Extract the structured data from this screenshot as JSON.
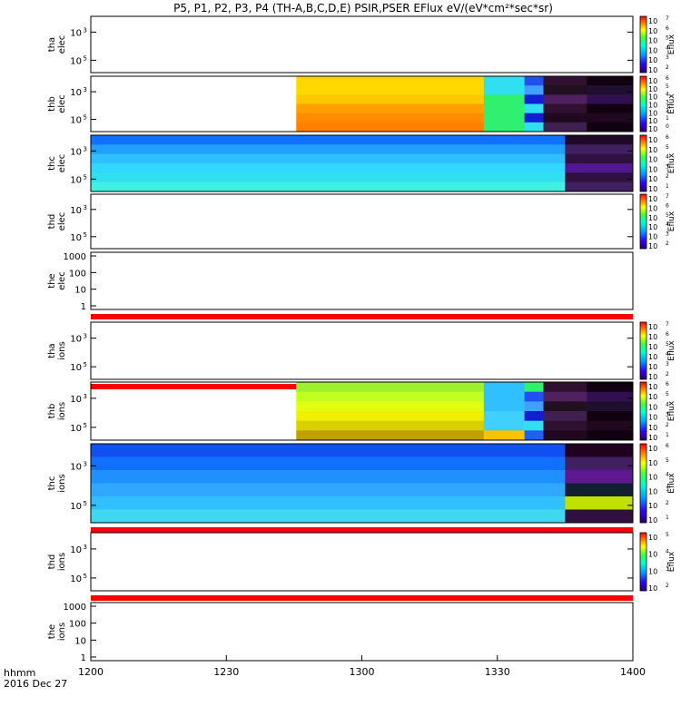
{
  "title": "P5, P1, P2, P3, P4 (TH-A,B,C,D,E) PSIR,PSER EFlux eV/(eV*cm²*sec*sr)",
  "footer": {
    "label_line1": "hhmm",
    "label_line2": "2016 Dec 27"
  },
  "chart_data": {
    "type": "heatmap",
    "x_axis": {
      "ticks": [
        "1200",
        "1230",
        "1300",
        "1330",
        "1400"
      ],
      "range": [
        "12:00",
        "14:00"
      ]
    },
    "colorbar_label": "Eflux",
    "panels": [
      {
        "id": "tha_elec",
        "label": [
          "tha",
          "elec"
        ],
        "ytick_exp": [
          "3",
          "5"
        ],
        "cbar": {
          "exps": [
            "7",
            "6",
            "5",
            "4",
            "3",
            "2"
          ]
        },
        "bars": [],
        "data": []
      },
      {
        "id": "thb_elec",
        "label": [
          "thb",
          "elec"
        ],
        "ytick_exp": [
          "3",
          "5"
        ],
        "cbar": {
          "exps": [
            "6",
            "5",
            "4",
            "3",
            "2",
            "1",
            "0"
          ]
        },
        "bars": [],
        "data": [
          {
            "t0": 12.758,
            "t1": 13.45,
            "rows": [
              [
                "#ffd800",
                "#ffd800",
                "#ffc800",
                "#ffa000",
                "#ff8c00",
                "#ff8000"
              ]
            ]
          },
          {
            "t0": 13.45,
            "t1": 13.6,
            "rows": [
              [
                "#30e0f0",
                "#30e0f0",
                "#30f070",
                "#30f070",
                "#30f070",
                "#30f070"
              ]
            ]
          },
          {
            "t0": 13.6,
            "t1": 13.67,
            "rows": [
              [
                "#2050f0",
                "#40a0ff",
                "#1020d0",
                "#30e0f0",
                "#1020d0",
                "#30e0f0"
              ]
            ]
          },
          {
            "t0": 13.67,
            "t1": 13.83,
            "rows": [
              [
                "#301030",
                "#201020",
                "#502060",
                "#301030",
                "#200820",
                "#402050"
              ]
            ]
          },
          {
            "t0": 13.83,
            "t1": 14.0,
            "rows": [
              [
                "#100010",
                "#201030",
                "#301050",
                "#100010",
                "#200820",
                "#100010"
              ]
            ]
          }
        ]
      },
      {
        "id": "thc_elec",
        "label": [
          "thc",
          "elec"
        ],
        "ytick_exp": [
          "3",
          "5"
        ],
        "cbar": {
          "exps": [
            "6",
            "5",
            "4",
            "3",
            "2",
            "1"
          ]
        },
        "bars": [],
        "data": [
          {
            "t0": 12.0,
            "t1": 13.75,
            "rows": [
              [
                "#1070ff",
                "#20a0ff",
                "#30c0ff",
                "#30d8ff",
                "#30e0f0",
                "#40f0e0"
              ]
            ]
          },
          {
            "t0": 13.75,
            "t1": 14.0,
            "rows": [
              [
                "#200828",
                "#402060",
                "#301040",
                "#501890",
                "#301040",
                "#402060"
              ]
            ]
          }
        ]
      },
      {
        "id": "thd_elec",
        "label": [
          "thd",
          "elec"
        ],
        "ytick_exp": [
          "3",
          "5"
        ],
        "cbar": {
          "exps": [
            "7",
            "6",
            "5",
            "4",
            "3",
            "2"
          ]
        },
        "bars": [],
        "data": []
      },
      {
        "id": "the_elec",
        "label": [
          "the",
          "elec"
        ],
        "yticks": [
          "1000",
          "100",
          "10",
          "1"
        ],
        "cbar": null,
        "bars": [
          "bottom_red"
        ],
        "data": []
      },
      {
        "id": "tha_ions",
        "label": [
          "tha",
          "ions"
        ],
        "ytick_exp": [
          "3",
          "5"
        ],
        "cbar": {
          "exps": [
            "7",
            "6",
            "5",
            "4",
            "3",
            "2"
          ]
        },
        "bars": [
          "bottom_red"
        ],
        "data": []
      },
      {
        "id": "thb_ions",
        "label": [
          "thb",
          "ions"
        ],
        "ytick_exp": [
          "3",
          "5"
        ],
        "cbar": {
          "exps": [
            "6",
            "5",
            "4",
            "3",
            "2",
            "1"
          ]
        },
        "bars": [
          "bottom_red"
        ],
        "data": [
          {
            "t0": 12.758,
            "t1": 13.45,
            "rows": [
              [
                "#a0f030",
                "#c0ff20",
                "#e0ff10",
                "#f0f000",
                "#d8d000",
                "#c0a000"
              ]
            ]
          },
          {
            "t0": 13.45,
            "t1": 13.6,
            "rows": [
              [
                "#30c0ff",
                "#30c0ff",
                "#30c0ff",
                "#40d0ff",
                "#40d0ff",
                "#ffc000"
              ]
            ]
          },
          {
            "t0": 13.6,
            "t1": 13.67,
            "rows": [
              [
                "#30f070",
                "#2050f0",
                "#40a0ff",
                "#1020d0",
                "#30e0f0",
                "#2060f0"
              ]
            ]
          },
          {
            "t0": 13.67,
            "t1": 13.83,
            "rows": [
              [
                "#301030",
                "#502060",
                "#201020",
                "#402050",
                "#301030",
                "#200820"
              ]
            ]
          },
          {
            "t0": 13.83,
            "t1": 14.0,
            "rows": [
              [
                "#100010",
                "#301050",
                "#201030",
                "#100010",
                "#200820",
                "#100010"
              ]
            ]
          }
        ]
      },
      {
        "id": "thc_ions",
        "label": [
          "thc",
          "ions"
        ],
        "ytick_exp": [
          "3",
          "5"
        ],
        "cbar": {
          "exps": [
            "6",
            "5",
            "4",
            "3",
            "2",
            "1"
          ]
        },
        "bars": [
          "bottom_red"
        ],
        "data": [
          {
            "t0": 12.0,
            "t1": 13.75,
            "rows": [
              [
                "#1050f0",
                "#1070ff",
                "#2090ff",
                "#30a8ff",
                "#30c0ff",
                "#40d8f0"
              ]
            ]
          },
          {
            "t0": 13.75,
            "t1": 14.0,
            "rows": [
              [
                "#200020",
                "#402060",
                "#601890",
                "#102030",
                "#c0e000",
                "#301040"
              ]
            ]
          }
        ]
      },
      {
        "id": "thd_ions",
        "label": [
          "thd",
          "ions"
        ],
        "ytick_exp": [
          "3",
          "5"
        ],
        "cbar": {
          "exps": [
            "5",
            "4",
            "3",
            "2"
          ]
        },
        "bars": [
          "bottom_red"
        ],
        "data": []
      },
      {
        "id": "the_ions",
        "label": [
          "the",
          "ions"
        ],
        "yticks": [
          "1000",
          "100",
          "10",
          "1"
        ],
        "cbar": null,
        "bars": [],
        "data": []
      }
    ]
  }
}
